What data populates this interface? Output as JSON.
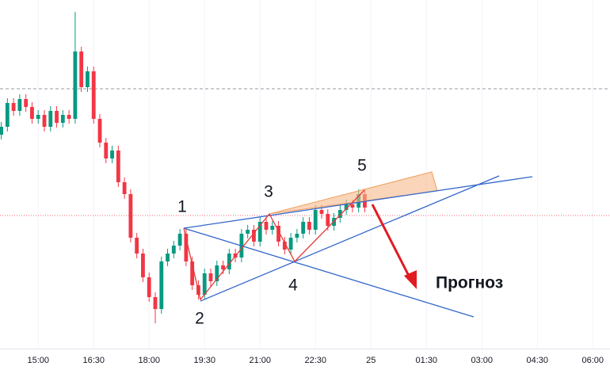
{
  "chart_data": {
    "type": "candlestick",
    "x": [
      840,
      850,
      860,
      870,
      880,
      890,
      900,
      910,
      920,
      930,
      940,
      950,
      960,
      970,
      980,
      990,
      1000,
      1010,
      1020,
      1030,
      1040,
      1050,
      1060,
      1070,
      1080,
      1090,
      1100,
      1110,
      1120,
      1130,
      1140,
      1150,
      1160,
      1170,
      1180,
      1190,
      1200,
      1210,
      1220,
      1230,
      1240,
      1250,
      1260,
      1270,
      1280,
      1290,
      1300,
      1310,
      1320,
      1330,
      1340,
      1350,
      1360,
      1370,
      1380,
      1390,
      1400,
      1410,
      1420,
      1430
    ],
    "open": [
      270,
      280,
      310,
      300,
      315,
      305,
      290,
      295,
      280,
      300,
      285,
      295,
      290,
      375,
      330,
      350,
      290,
      260,
      240,
      250,
      210,
      195,
      140,
      120,
      90,
      65,
      50,
      110,
      120,
      130,
      145,
      110,
      80,
      68,
      95,
      85,
      105,
      100,
      120,
      115,
      145,
      150,
      135,
      160,
      150,
      155,
      135,
      125,
      140,
      145,
      160,
      150,
      175,
      170,
      155,
      165,
      175,
      182,
      178,
      195
    ],
    "high": [
      286,
      316,
      316,
      321,
      321,
      311,
      301,
      301,
      306,
      306,
      301,
      301,
      425,
      381,
      356,
      356,
      296,
      266,
      256,
      256,
      216,
      201,
      146,
      126,
      96,
      71,
      116,
      126,
      136,
      151,
      151,
      116,
      86,
      101,
      101,
      111,
      111,
      126,
      126,
      151,
      156,
      156,
      166,
      166,
      161,
      161,
      141,
      146,
      151,
      166,
      166,
      181,
      181,
      176,
      171,
      181,
      188,
      188,
      201,
      201
    ],
    "low": [
      264,
      274,
      294,
      294,
      299,
      284,
      284,
      274,
      274,
      279,
      279,
      284,
      284,
      324,
      324,
      284,
      254,
      234,
      234,
      204,
      189,
      134,
      114,
      84,
      59,
      32,
      44,
      104,
      114,
      124,
      104,
      74,
      62,
      62,
      79,
      79,
      94,
      94,
      109,
      109,
      139,
      129,
      129,
      144,
      144,
      129,
      119,
      119,
      134,
      139,
      144,
      144,
      164,
      149,
      149,
      159,
      169,
      172,
      172,
      172
    ],
    "close": [
      280,
      310,
      300,
      315,
      305,
      290,
      295,
      280,
      300,
      285,
      295,
      290,
      375,
      330,
      350,
      290,
      260,
      240,
      250,
      210,
      195,
      140,
      120,
      90,
      65,
      50,
      110,
      120,
      130,
      145,
      110,
      80,
      68,
      95,
      85,
      105,
      100,
      120,
      115,
      145,
      150,
      135,
      160,
      150,
      155,
      135,
      125,
      140,
      145,
      160,
      150,
      175,
      170,
      155,
      165,
      175,
      182,
      178,
      195,
      178
    ],
    "up_color": "#089981",
    "down_color": "#f23645",
    "xlim": [
      838,
      1828
    ],
    "xticks": [
      {
        "value": 900,
        "label": "15:00"
      },
      {
        "value": 990,
        "label": "16:30"
      },
      {
        "value": 1080,
        "label": "18:00"
      },
      {
        "value": 1170,
        "label": "19:30"
      },
      {
        "value": 1260,
        "label": "21:00"
      },
      {
        "value": 1350,
        "label": "22:30"
      },
      {
        "value": 1440,
        "label": "25"
      },
      {
        "value": 1530,
        "label": "01:30"
      },
      {
        "value": 1620,
        "label": "03:00"
      },
      {
        "value": 1710,
        "label": "04:30"
      },
      {
        "value": 1800,
        "label": "06:00"
      }
    ],
    "ylim": [
      0,
      440
    ],
    "grid": true,
    "point_labels": [
      "1",
      "2",
      "3",
      "4",
      "5"
    ],
    "forecast_label": "Прогноз"
  }
}
